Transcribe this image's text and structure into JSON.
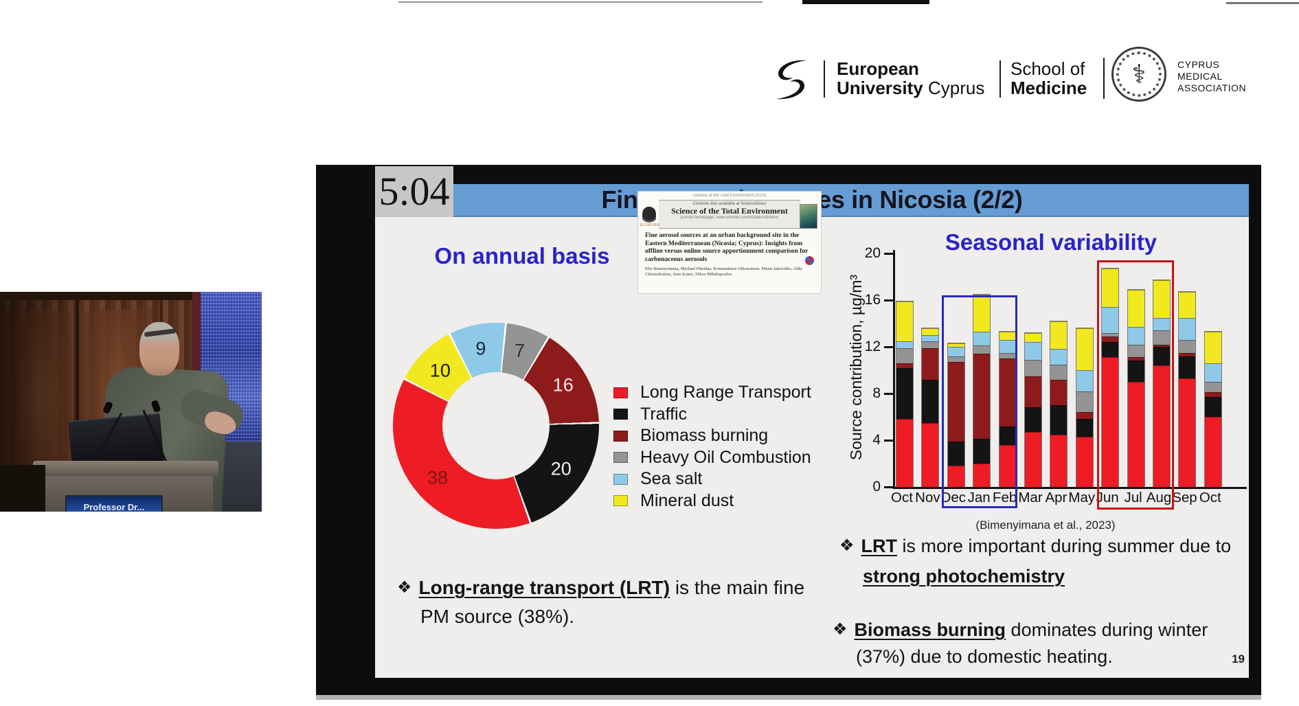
{
  "header": {
    "euc_line1": "European",
    "euc_line2_bold": "University",
    "euc_line2_rest": " Cyprus",
    "som_line1": "School of",
    "som_line2": "Medicine",
    "cma_line1": "CYPRUS",
    "cma_line2": "MEDICAL",
    "cma_line3": "ASSOCIATION"
  },
  "video": {
    "nameplate": "Professor Dr..."
  },
  "slide": {
    "timer": "5:04",
    "title": "Fine aerosol sources in Nicosia (2/2)",
    "annual_heading": "On annual basis",
    "seasonal_heading": "Seasonal variability",
    "citation": "(Bimenyimana et al., 2023)",
    "page_number": "19",
    "paper": {
      "top_line": "Science of the Total Environment (2023)",
      "contents_line": "Contents lists available at ScienceDirect",
      "journal": "Science of the Total Environment",
      "homepage_line": "journal homepage: www.elsevier.com/locate/scitotenv",
      "elsevier": "ELSEVIER",
      "title": "Fine aerosol sources at an urban background site in the Eastern Mediterranean (Nicosia; Cyprus): Insights from offline versus online source apportionment comparison for carbonaceous aerosols",
      "authors": "Elie Bimenyimana, Michael Pikridas, Konstantinos Oikonomou, Minas Iakovides, Aliki Christodoulou, Jean Sciare, Nikos Mihalopoulos"
    },
    "bullets": {
      "left_marker": "❖",
      "left_bold": "Long-range transport (LRT)",
      "left_rest": " is the main fine",
      "left_line2": "PM source (38%).",
      "r1_marker": "❖",
      "r1_bold": "LRT",
      "r1_rest": " is more important during summer due to",
      "r1_line2_bold": "strong photochemistry",
      "r2_marker": "❖",
      "r2_bold": "Biomass burning",
      "r2_rest": " dominates during winter",
      "r2_line2": "(37%) due to domestic heating."
    }
  },
  "colors": {
    "accent_blue_text": "#2a23c8",
    "title_bar": "#669cd4",
    "slide_bg": "#efeeec",
    "winter_box": "#2a2ab8",
    "summer_box": "#c41414"
  },
  "chart_data": [
    {
      "type": "pie",
      "subtype": "donut",
      "title": "On annual basis",
      "unit": "%",
      "start_angle_deg": 5,
      "legend_position": "right",
      "legend": [
        {
          "label": "Long Range Transport",
          "color": "#ee1c25"
        },
        {
          "label": "Traffic",
          "color": "#141414"
        },
        {
          "label": "Biomass burning",
          "color": "#8e1b1b"
        },
        {
          "label": "Heavy Oil Combustion",
          "color": "#949494"
        },
        {
          "label": "Sea salt",
          "color": "#8fc9e8"
        },
        {
          "label": "Mineral dust",
          "color": "#f1e81f"
        }
      ],
      "segments_clockwise": [
        {
          "label": "Heavy Oil Combustion",
          "value": 7,
          "color": "#949494",
          "text_color": "#2f2f2f"
        },
        {
          "label": "Biomass burning",
          "value": 16,
          "color": "#8e1b1b",
          "text_color": "#f2eaea"
        },
        {
          "label": "Traffic",
          "value": 20,
          "color": "#141414",
          "text_color": "#efefef"
        },
        {
          "label": "Long Range Transport",
          "value": 38,
          "color": "#ee1c25",
          "text_color": "#7d1416"
        },
        {
          "label": "Mineral dust",
          "value": 10,
          "color": "#f1e81f",
          "text_color": "#1a1a1a"
        },
        {
          "label": "Sea salt",
          "value": 9,
          "color": "#8fc9e8",
          "text_color": "#1c2b33"
        }
      ]
    },
    {
      "type": "bar",
      "stacked": true,
      "title": "Seasonal variability",
      "xlabel": "",
      "ylabel": "Source contribution, µg/m³",
      "ylim": [
        0,
        20
      ],
      "yticks": [
        0,
        4,
        8,
        12,
        16,
        20
      ],
      "grid": false,
      "categories": [
        "Oct",
        "Nov",
        "Dec",
        "Jan",
        "Feb",
        "Mar",
        "Apr",
        "May",
        "Jun",
        "Jul",
        "Aug",
        "Sep",
        "Oct"
      ],
      "series": [
        {
          "name": "Long Range Transport",
          "color": "#ee1c25",
          "values": [
            5.8,
            5.5,
            1.8,
            2.0,
            3.6,
            4.7,
            4.5,
            4.3,
            11.1,
            9.0,
            10.4,
            9.3,
            6.0
          ]
        },
        {
          "name": "Traffic",
          "color": "#141414",
          "values": [
            4.4,
            3.7,
            2.1,
            2.1,
            1.6,
            2.1,
            2.5,
            1.5,
            1.3,
            1.8,
            1.6,
            1.9,
            1.7
          ]
        },
        {
          "name": "Biomass burning",
          "color": "#8e1b1b",
          "values": [
            0.4,
            2.7,
            6.8,
            7.3,
            5.8,
            2.7,
            2.2,
            0.6,
            0.5,
            0.3,
            0.2,
            0.3,
            0.4
          ]
        },
        {
          "name": "Heavy Oil Combustion",
          "color": "#949494",
          "values": [
            1.3,
            0.6,
            0.5,
            0.7,
            0.5,
            1.4,
            1.3,
            1.8,
            0.3,
            1.1,
            1.2,
            1.1,
            0.9
          ]
        },
        {
          "name": "Sea salt",
          "color": "#8fc9e8",
          "values": [
            0.6,
            0.5,
            0.8,
            1.2,
            1.1,
            1.5,
            1.3,
            1.8,
            2.2,
            1.5,
            1.1,
            1.9,
            1.6
          ]
        },
        {
          "name": "Mineral dust",
          "color": "#f1e81f",
          "values": [
            3.4,
            0.6,
            0.3,
            3.2,
            0.7,
            0.8,
            2.4,
            3.6,
            3.3,
            3.2,
            3.2,
            2.2,
            2.7
          ]
        }
      ],
      "annotations": {
        "winter_box": {
          "months": [
            "Dec",
            "Jan",
            "Feb"
          ],
          "color": "#2a2ab8"
        },
        "summer_box": {
          "months": [
            "Jun",
            "Jul",
            "Aug"
          ],
          "color": "#c41414"
        }
      },
      "caption": "(Bimenyimana et al., 2023)"
    }
  ]
}
